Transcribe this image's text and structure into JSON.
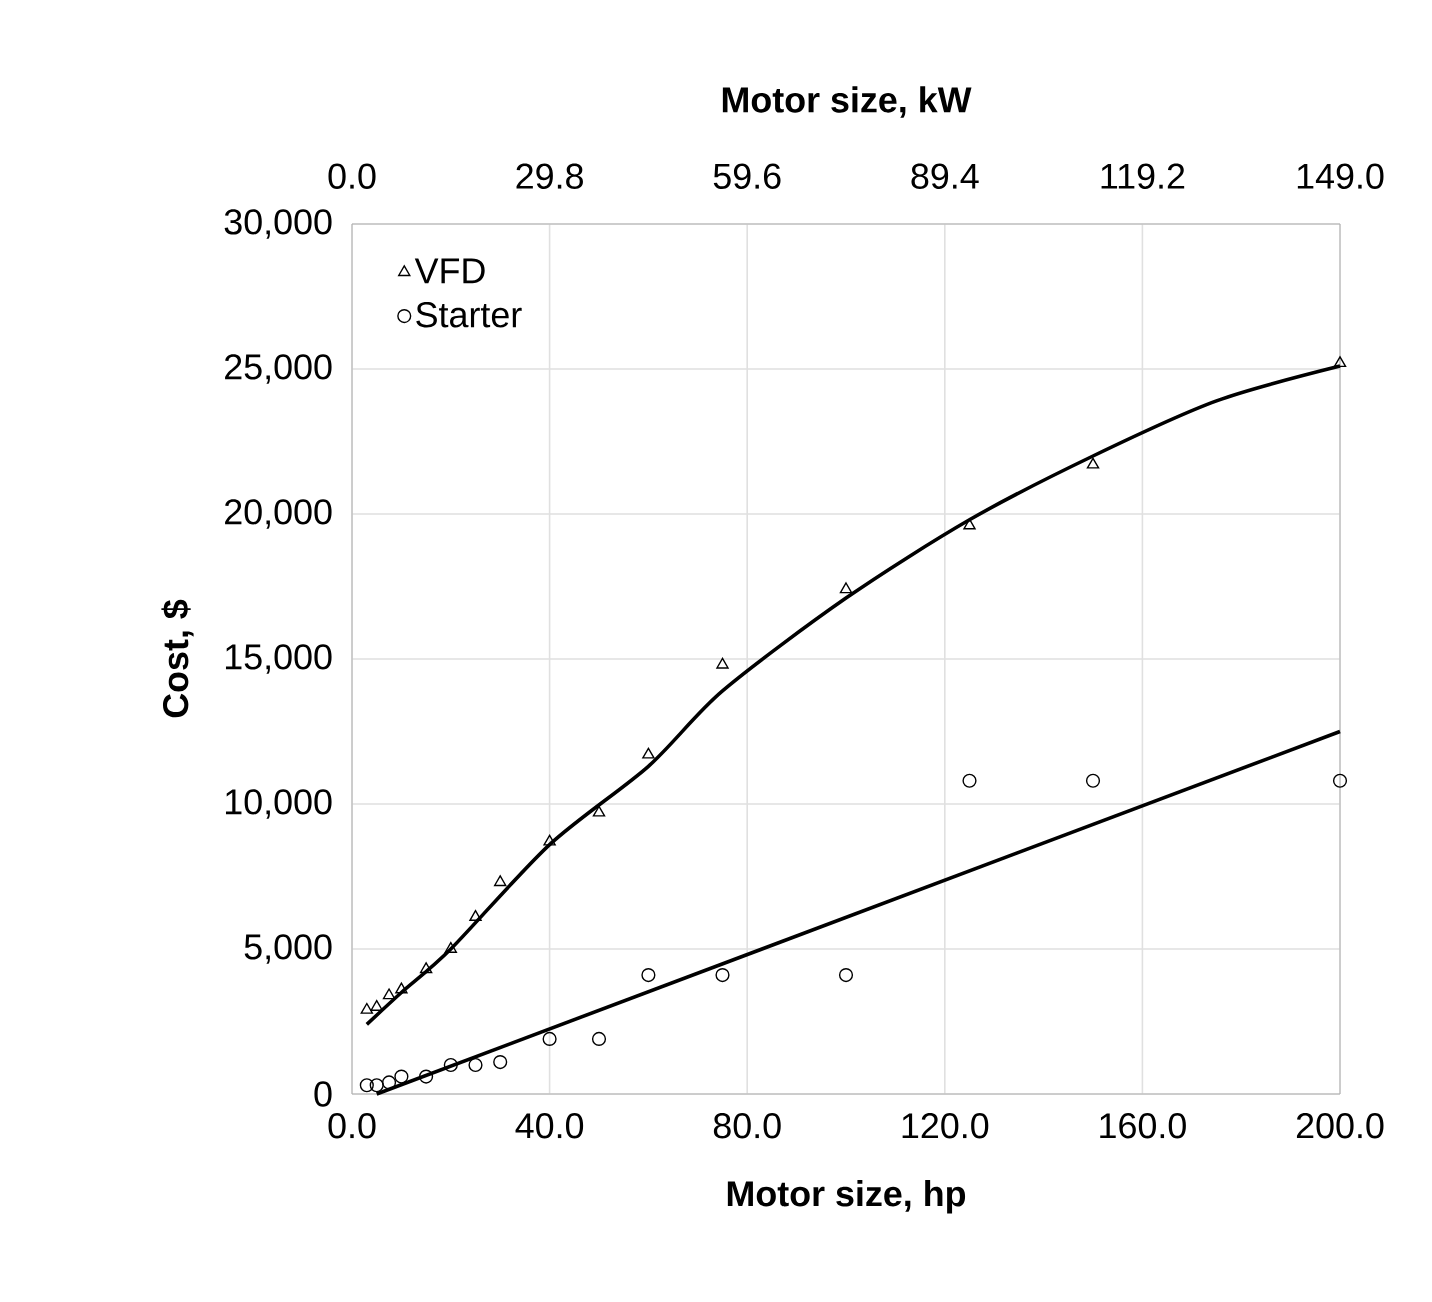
{
  "chart_data": {
    "type": "scatter",
    "xlabel": "Motor size, hp",
    "ylabel": "Cost, $",
    "x2label": "Motor size, kW",
    "xlim": [
      0,
      200
    ],
    "xticks": [
      {
        "value": 0,
        "label": "0.0"
      },
      {
        "value": 40,
        "label": "40.0"
      },
      {
        "value": 80,
        "label": "80.0"
      },
      {
        "value": 120,
        "label": "120.0"
      },
      {
        "value": 160,
        "label": "160.0"
      },
      {
        "value": 200,
        "label": "200.0"
      }
    ],
    "x2lim": [
      0,
      149
    ],
    "x2ticks": [
      {
        "value": 0,
        "label": "0.0"
      },
      {
        "value": 29.8,
        "label": "29.8"
      },
      {
        "value": 59.6,
        "label": "59.6"
      },
      {
        "value": 89.4,
        "label": "89.4"
      },
      {
        "value": 119.2,
        "label": "119.2"
      },
      {
        "value": 149,
        "label": "149.0"
      }
    ],
    "ylim": [
      0,
      30000
    ],
    "yticks": [
      {
        "value": 0,
        "label": "0"
      },
      {
        "value": 5000,
        "label": "5,000"
      },
      {
        "value": 10000,
        "label": "10,000"
      },
      {
        "value": 15000,
        "label": "15,000"
      },
      {
        "value": 20000,
        "label": "20,000"
      },
      {
        "value": 25000,
        "label": "25,000"
      },
      {
        "value": 30000,
        "label": "30,000"
      }
    ],
    "grid": true,
    "legend": "top left",
    "series": [
      {
        "name": "VFD",
        "marker": "triangle",
        "color": "#000000",
        "x": [
          3,
          5,
          7.5,
          10,
          15,
          20,
          25,
          30,
          40,
          50,
          60,
          75,
          100,
          125,
          150,
          200
        ],
        "values": [
          2900,
          3000,
          3400,
          3600,
          4300,
          5000,
          6100,
          7300,
          8700,
          9700,
          11700,
          14800,
          17400,
          19600,
          21700,
          25200
        ]
      },
      {
        "name": "Starter",
        "marker": "circle",
        "color": "#000000",
        "x": [
          3,
          5,
          7.5,
          10,
          15,
          20,
          25,
          30,
          40,
          50,
          60,
          75,
          100,
          125,
          150,
          200
        ],
        "values": [
          300,
          300,
          400,
          600,
          600,
          1000,
          1000,
          1100,
          1900,
          1900,
          4100,
          4100,
          4100,
          10800,
          10800,
          10800
        ]
      },
      {
        "type": "line",
        "marker": "none",
        "color": "#000000",
        "x": [
          3,
          10,
          20,
          40,
          60,
          75,
          100,
          125,
          150,
          175,
          200
        ],
        "values": [
          2400,
          3500,
          5000,
          8600,
          11300,
          13900,
          17100,
          19800,
          22000,
          23900,
          25100
        ]
      },
      {
        "type": "line",
        "marker": "none",
        "color": "#000000",
        "x": [
          5,
          200
        ],
        "values": [
          0,
          12500
        ]
      }
    ]
  }
}
